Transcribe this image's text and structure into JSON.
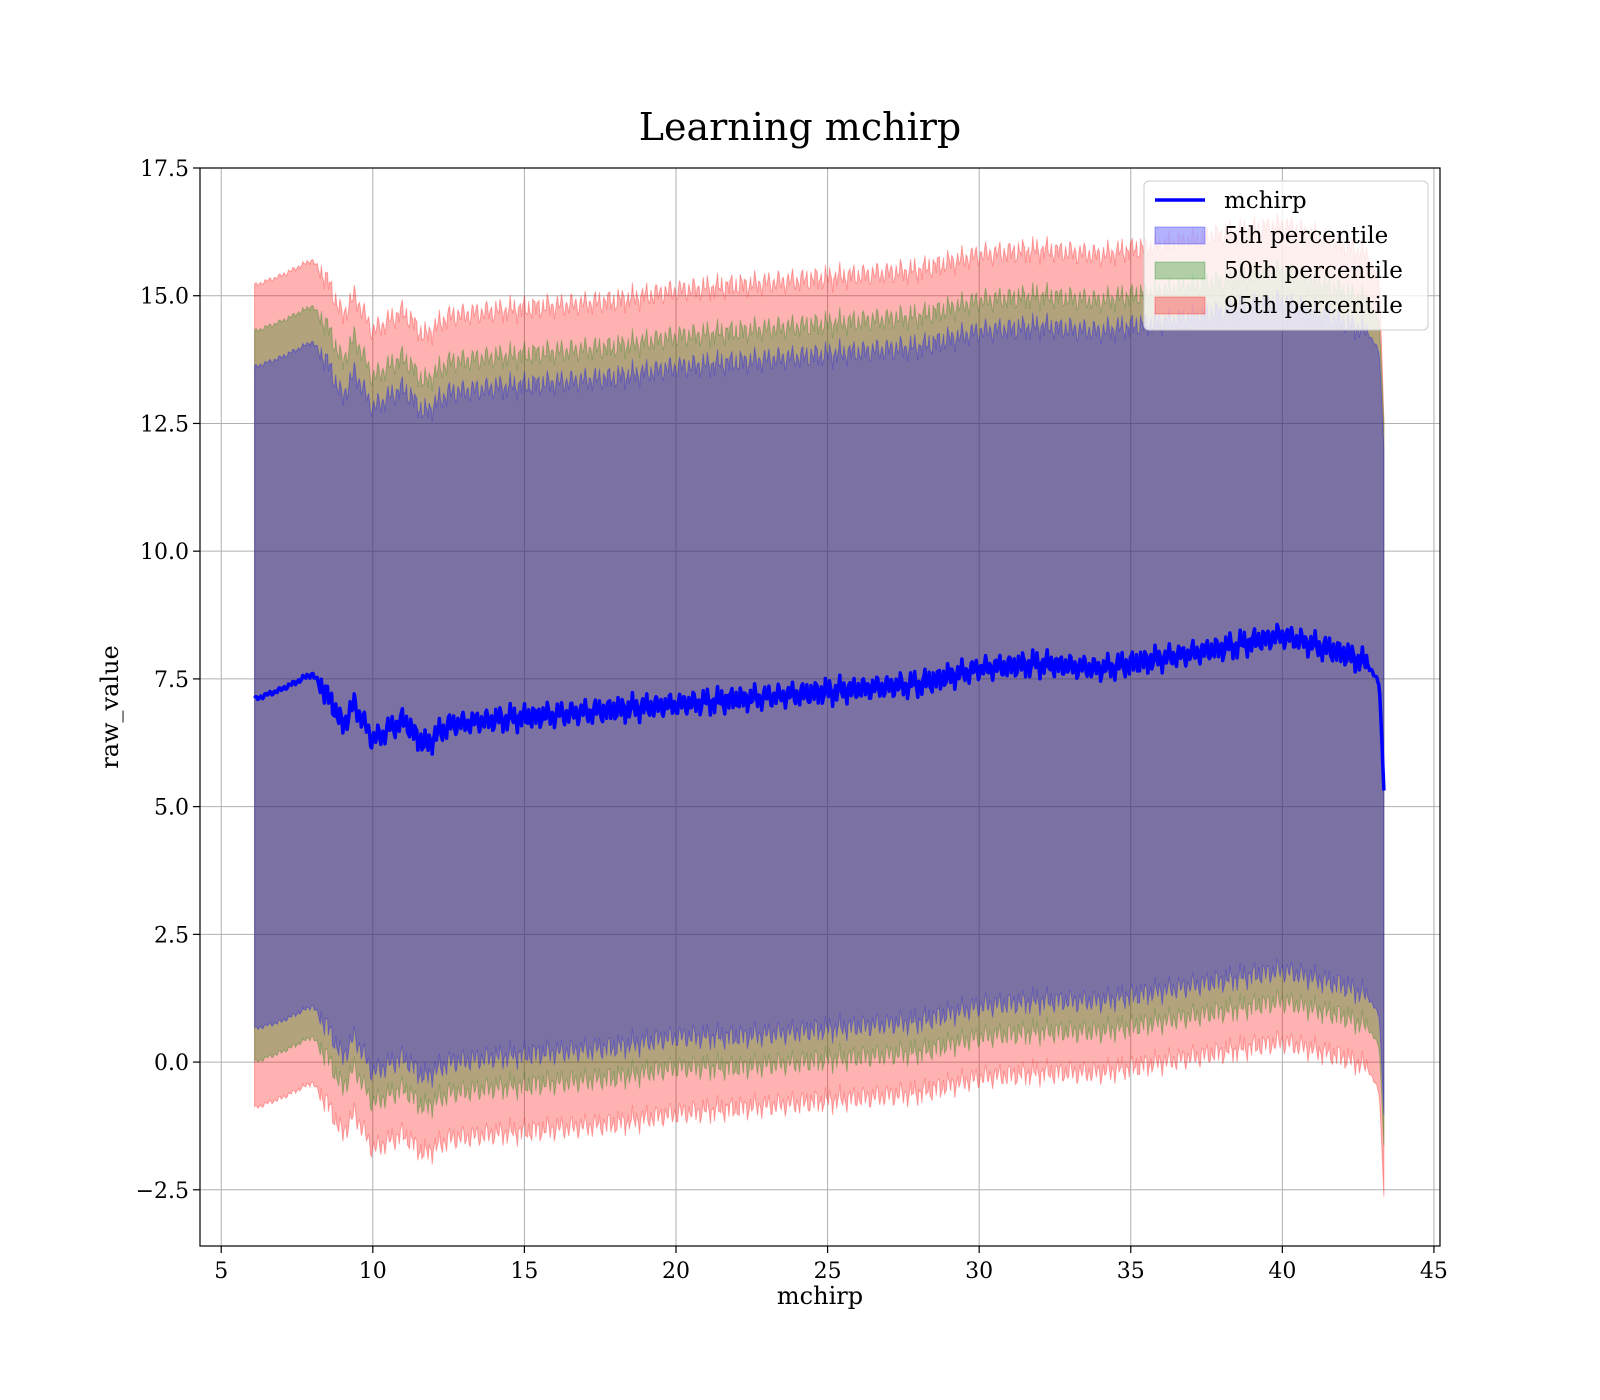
{
  "chart_data": {
    "type": "area",
    "title": "Learning mchirp",
    "xlabel": "mchirp",
    "ylabel": "raw_value",
    "xlim": [
      4.3,
      45.2
    ],
    "ylim": [
      -3.6,
      17.5
    ],
    "xticks": [
      5,
      10,
      15,
      20,
      25,
      30,
      35,
      40,
      45
    ],
    "yticks": [
      -2.5,
      0.0,
      2.5,
      5.0,
      7.5,
      10.0,
      12.5,
      15.0,
      17.5
    ],
    "xtick_labels": [
      "5",
      "10",
      "15",
      "20",
      "25",
      "30",
      "35",
      "40",
      "45"
    ],
    "ytick_labels": [
      "−2.5",
      "0.0",
      "2.5",
      "5.0",
      "7.5",
      "10.0",
      "12.5",
      "15.0",
      "17.5"
    ],
    "grid": true,
    "legend_position": "top-right",
    "x": [
      6.1,
      7.0,
      8.0,
      8.5,
      9.0,
      9.4,
      10.0,
      11.0,
      11.7,
      12.5,
      14.0,
      16.0,
      18.0,
      20.0,
      22.0,
      24.0,
      26.0,
      28.0,
      30.0,
      32.0,
      34.0,
      36.0,
      38.0,
      40.0,
      42.0,
      42.8,
      43.2,
      43.35
    ],
    "mean_line": {
      "name": "mchirp",
      "color": "#0000ff",
      "values": [
        7.1,
        7.3,
        7.6,
        7.2,
        6.6,
        7.0,
        6.3,
        6.7,
        6.2,
        6.6,
        6.7,
        6.8,
        6.9,
        7.0,
        7.1,
        7.2,
        7.3,
        7.4,
        7.7,
        7.8,
        7.7,
        7.9,
        8.1,
        8.35,
        8.0,
        7.8,
        7.4,
        5.35
      ]
    },
    "bands": [
      {
        "name": "5th percentile",
        "color": "#0000ff",
        "lower": [
          0.65,
          0.8,
          1.1,
          0.7,
          0.1,
          0.5,
          -0.2,
          0.1,
          -0.3,
          0.0,
          0.1,
          0.2,
          0.3,
          0.5,
          0.5,
          0.6,
          0.7,
          0.8,
          1.1,
          1.2,
          1.2,
          1.4,
          1.6,
          1.8,
          1.5,
          1.3,
          0.9,
          -1.0
        ],
        "upper": [
          13.6,
          13.8,
          14.1,
          13.7,
          13.0,
          13.5,
          12.8,
          13.2,
          12.7,
          13.1,
          13.2,
          13.3,
          13.4,
          13.6,
          13.7,
          13.8,
          13.9,
          14.0,
          14.3,
          14.4,
          14.3,
          14.5,
          14.7,
          14.9,
          14.5,
          14.3,
          13.9,
          12.0
        ]
      },
      {
        "name": "50th percentile",
        "color": "#008000",
        "lower": [
          0.0,
          0.2,
          0.5,
          0.1,
          -0.5,
          -0.1,
          -0.8,
          -0.5,
          -0.9,
          -0.6,
          -0.5,
          -0.4,
          -0.3,
          -0.1,
          -0.1,
          0.0,
          0.1,
          0.2,
          0.5,
          0.6,
          0.6,
          0.8,
          1.0,
          1.2,
          0.9,
          0.7,
          0.3,
          -1.6
        ],
        "upper": [
          14.3,
          14.5,
          14.8,
          14.4,
          13.7,
          14.2,
          13.4,
          13.8,
          13.3,
          13.7,
          13.8,
          13.9,
          14.0,
          14.2,
          14.3,
          14.4,
          14.5,
          14.6,
          14.9,
          15.0,
          14.9,
          15.1,
          15.3,
          15.5,
          15.1,
          14.9,
          14.5,
          12.5
        ]
      },
      {
        "name": "95th percentile",
        "color": "#ff0000",
        "lower": [
          -0.9,
          -0.7,
          -0.4,
          -0.8,
          -1.4,
          -1.0,
          -1.7,
          -1.4,
          -1.8,
          -1.5,
          -1.4,
          -1.3,
          -1.2,
          -1.0,
          -0.9,
          -0.8,
          -0.7,
          -0.6,
          -0.3,
          -0.2,
          -0.2,
          0.0,
          0.2,
          0.4,
          0.1,
          -0.1,
          -0.6,
          -2.6
        ],
        "upper": [
          15.2,
          15.4,
          15.7,
          15.3,
          14.6,
          15.0,
          14.3,
          14.7,
          14.2,
          14.6,
          14.7,
          14.8,
          14.9,
          15.1,
          15.2,
          15.3,
          15.4,
          15.5,
          15.8,
          15.9,
          15.8,
          16.0,
          16.2,
          16.4,
          16.0,
          15.8,
          15.3,
          12.6
        ]
      }
    ]
  }
}
